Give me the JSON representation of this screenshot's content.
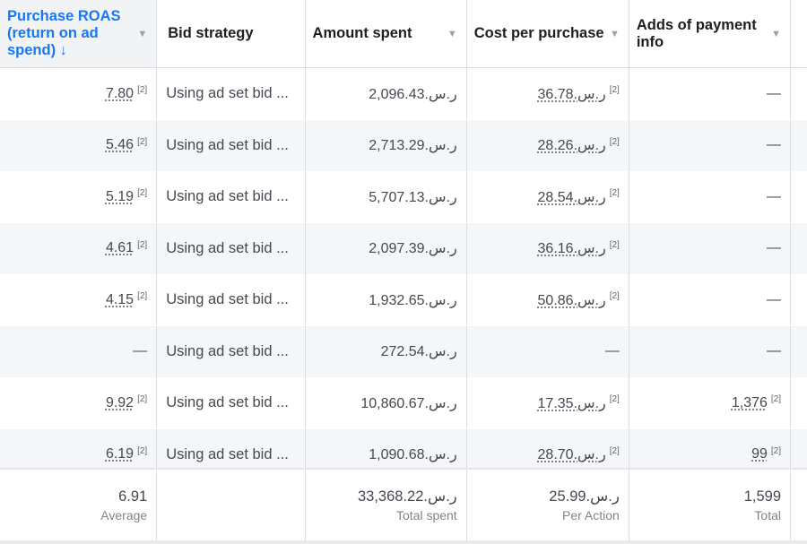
{
  "headers": [
    {
      "label": "Purchase ROAS (return on ad spend) ↓",
      "active": true
    },
    {
      "label": "Bid strategy",
      "active": false
    },
    {
      "label": "Amount spent",
      "active": false
    },
    {
      "label": "Cost per purchase",
      "active": false
    },
    {
      "label": "Adds of payment info",
      "active": false
    }
  ],
  "footnote_marker": "[2]",
  "dash": "—",
  "rows": [
    {
      "roas": "7.80",
      "roas_note": "[2]",
      "bid": "Using ad set bid ...",
      "spent": "2,096.43.ر.س",
      "cpp": "36.78.ر.س",
      "cpp_note": "[2]",
      "api": "—",
      "api_note": ""
    },
    {
      "roas": "5.46",
      "roas_note": "[2]",
      "bid": "Using ad set bid ...",
      "spent": "2,713.29.ر.س",
      "cpp": "28.26.ر.س",
      "cpp_note": "[2]",
      "api": "—",
      "api_note": ""
    },
    {
      "roas": "5.19",
      "roas_note": "[2]",
      "bid": "Using ad set bid ...",
      "spent": "5,707.13.ر.س",
      "cpp": "28.54.ر.س",
      "cpp_note": "[2]",
      "api": "—",
      "api_note": ""
    },
    {
      "roas": "4.61",
      "roas_note": "[2]",
      "bid": "Using ad set bid ...",
      "spent": "2,097.39.ر.س",
      "cpp": "36.16.ر.س",
      "cpp_note": "[2]",
      "api": "—",
      "api_note": ""
    },
    {
      "roas": "4.15",
      "roas_note": "[2]",
      "bid": "Using ad set bid ...",
      "spent": "1,932.65.ر.س",
      "cpp": "50.86.ر.س",
      "cpp_note": "[2]",
      "api": "—",
      "api_note": ""
    },
    {
      "roas": "—",
      "roas_note": "",
      "bid": "Using ad set bid ...",
      "spent": "272.54.ر.س",
      "cpp": "—",
      "cpp_note": "",
      "api": "—",
      "api_note": ""
    },
    {
      "roas": "9.92",
      "roas_note": "[2]",
      "bid": "Using ad set bid ...",
      "spent": "10,860.67.ر.س",
      "cpp": "17.35.ر.س",
      "cpp_note": "[2]",
      "api": "1,376",
      "api_note": "[2]"
    },
    {
      "roas": "6.19",
      "roas_note": "[2]",
      "bid": "Using ad set bid ...",
      "spent": "1,090.68.ر.س",
      "cpp": "28.70.ر.س",
      "cpp_note": "[2]",
      "api": "99",
      "api_note": "[2]"
    }
  ],
  "footer": {
    "roas": {
      "value": "6.91",
      "sub": "Average"
    },
    "spent": {
      "value": "33,368.22.ر.س",
      "sub": "Total spent"
    },
    "cpp": {
      "value": "25.99.ر.س",
      "sub": "Per Action"
    },
    "api": {
      "value": "1,599",
      "sub": "Total"
    }
  }
}
